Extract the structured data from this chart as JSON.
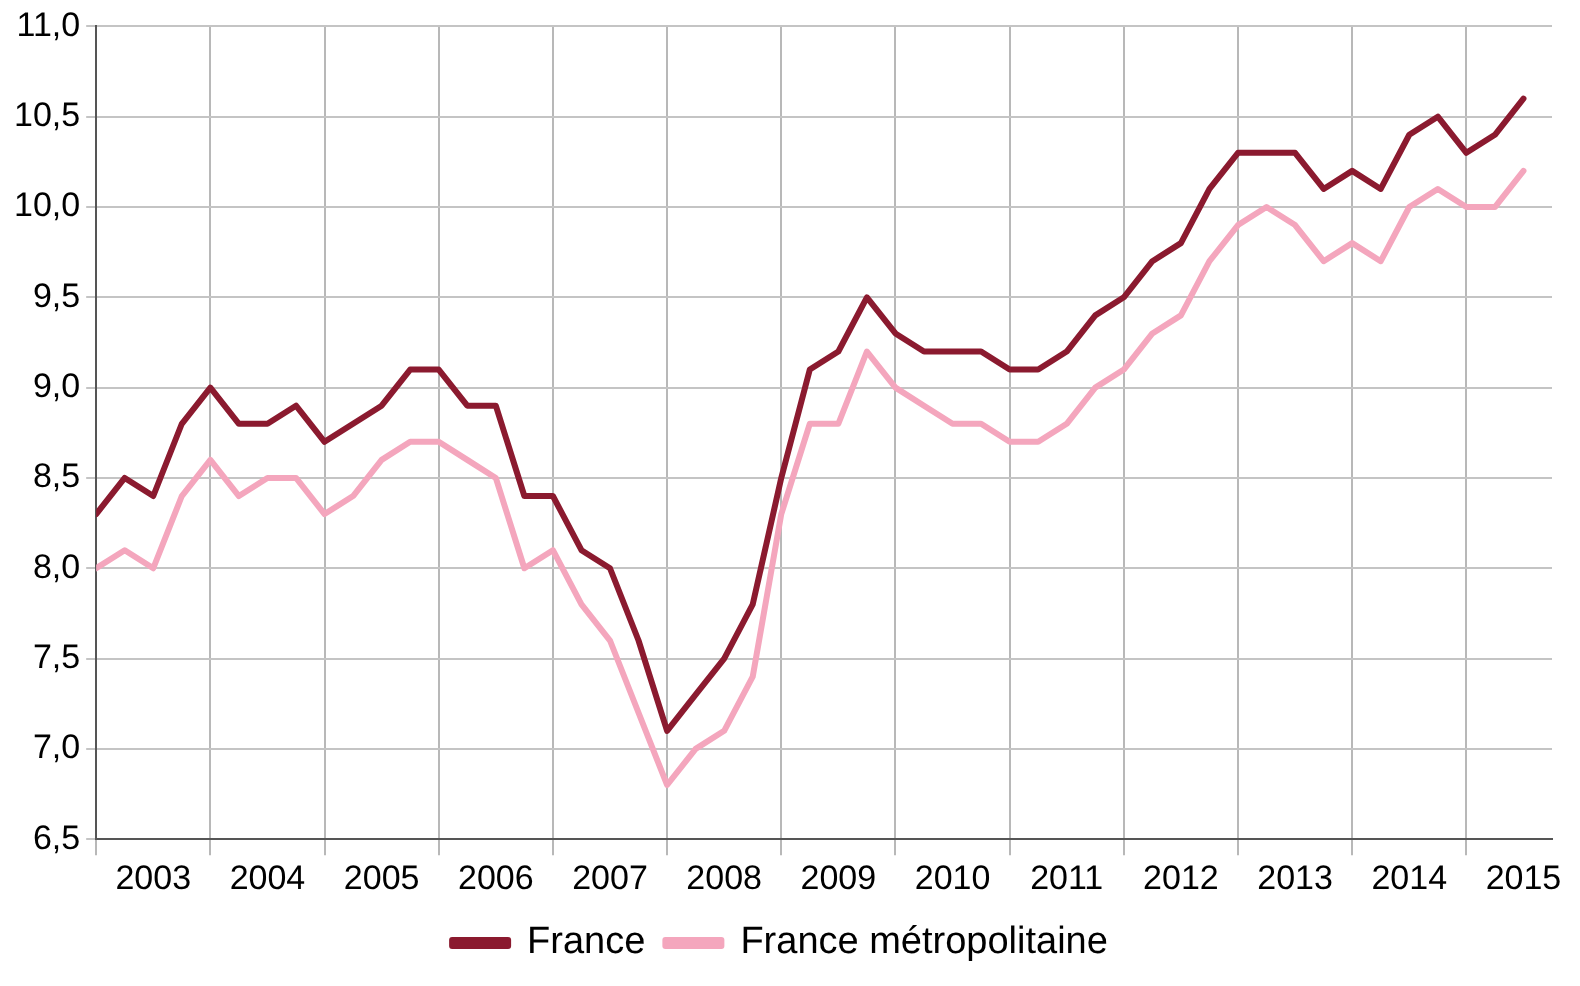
{
  "chart_data": {
    "type": "line",
    "x": [
      2003,
      2003.25,
      2003.5,
      2003.75,
      2004,
      2004.25,
      2004.5,
      2004.75,
      2005,
      2005.25,
      2005.5,
      2005.75,
      2006,
      2006.25,
      2006.5,
      2006.75,
      2007,
      2007.25,
      2007.5,
      2007.75,
      2008,
      2008.25,
      2008.5,
      2008.75,
      2009,
      2009.25,
      2009.5,
      2009.75,
      2010,
      2010.25,
      2010.5,
      2010.75,
      2011,
      2011.25,
      2011.5,
      2011.75,
      2012,
      2012.25,
      2012.5,
      2012.75,
      2013,
      2013.25,
      2013.5,
      2013.75,
      2014,
      2014.25,
      2014.5,
      2014.75,
      2015,
      2015.25,
      2015.5
    ],
    "series": [
      {
        "name": "France",
        "color": "#8b1a2f",
        "values": [
          8.3,
          8.5,
          8.4,
          8.8,
          9.0,
          8.8,
          8.8,
          8.9,
          8.7,
          8.8,
          8.9,
          9.1,
          9.1,
          8.9,
          8.9,
          8.4,
          8.4,
          8.1,
          8.0,
          7.6,
          7.1,
          7.3,
          7.5,
          7.8,
          8.5,
          9.1,
          9.2,
          9.5,
          9.3,
          9.2,
          9.2,
          9.2,
          9.1,
          9.1,
          9.2,
          9.4,
          9.5,
          9.7,
          9.8,
          10.1,
          10.3,
          10.3,
          10.3,
          10.1,
          10.2,
          10.1,
          10.4,
          10.5,
          10.3,
          10.4,
          10.6
        ]
      },
      {
        "name": "France métropolitaine",
        "color": "#f4a6bd",
        "values": [
          8.0,
          8.1,
          8.0,
          8.4,
          8.6,
          8.4,
          8.5,
          8.5,
          8.3,
          8.4,
          8.6,
          8.7,
          8.7,
          8.6,
          8.5,
          8.0,
          8.1,
          7.8,
          7.6,
          7.2,
          6.8,
          7.0,
          7.1,
          7.4,
          8.3,
          8.8,
          8.8,
          9.2,
          9.0,
          8.9,
          8.8,
          8.8,
          8.7,
          8.7,
          8.8,
          9.0,
          9.1,
          9.3,
          9.4,
          9.7,
          9.9,
          10.0,
          9.9,
          9.7,
          9.8,
          9.7,
          10.0,
          10.1,
          10.0,
          10.0,
          10.2
        ]
      }
    ],
    "xlim": [
      2003,
      2015.75
    ],
    "xticks": [
      {
        "value": 2003,
        "label": null
      },
      {
        "value": 2003.5,
        "label": "2003"
      },
      {
        "value": 2004,
        "label": null
      },
      {
        "value": 2004.5,
        "label": "2004"
      },
      {
        "value": 2005,
        "label": null
      },
      {
        "value": 2005.5,
        "label": "2005"
      },
      {
        "value": 2006,
        "label": null
      },
      {
        "value": 2006.5,
        "label": "2006"
      },
      {
        "value": 2007,
        "label": null
      },
      {
        "value": 2007.5,
        "label": "2007"
      },
      {
        "value": 2008,
        "label": null
      },
      {
        "value": 2008.5,
        "label": "2008"
      },
      {
        "value": 2009,
        "label": null
      },
      {
        "value": 2009.5,
        "label": "2009"
      },
      {
        "value": 2010,
        "label": null
      },
      {
        "value": 2010.5,
        "label": "2010"
      },
      {
        "value": 2011,
        "label": null
      },
      {
        "value": 2011.5,
        "label": "2011"
      },
      {
        "value": 2012,
        "label": null
      },
      {
        "value": 2012.5,
        "label": "2012"
      },
      {
        "value": 2013,
        "label": null
      },
      {
        "value": 2013.5,
        "label": "2013"
      },
      {
        "value": 2014,
        "label": null
      },
      {
        "value": 2014.5,
        "label": "2014"
      },
      {
        "value": 2015,
        "label": null
      },
      {
        "value": 2015.5,
        "label": "2015"
      }
    ],
    "ylim": [
      6.5,
      11
    ],
    "yticks": [
      {
        "value": 6.5,
        "label": "6,5"
      },
      {
        "value": 7,
        "label": "7,0"
      },
      {
        "value": 7.5,
        "label": "7,5"
      },
      {
        "value": 8,
        "label": "8,0"
      },
      {
        "value": 8.5,
        "label": "8,5"
      },
      {
        "value": 9,
        "label": "9,0"
      },
      {
        "value": 9.5,
        "label": "9,5"
      },
      {
        "value": 10,
        "label": "10,0"
      },
      {
        "value": 10.5,
        "label": "10,5"
      },
      {
        "value": 11,
        "label": "11,0"
      }
    ],
    "grid": true,
    "legend": "bottom",
    "marker": "none",
    "line_style": "solid"
  }
}
